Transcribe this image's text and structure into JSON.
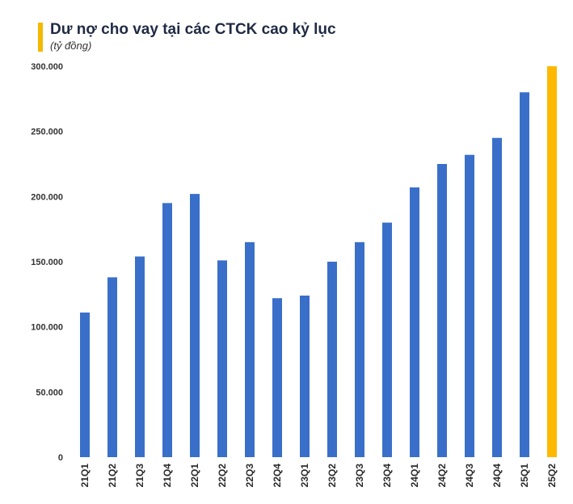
{
  "header": {
    "title": "Dư nợ cho vay tại các CTCK cao kỷ lục",
    "unit": "(tỷ đồng)"
  },
  "colors": {
    "accent": "#f5b800",
    "bar": "#3a6fc9",
    "highlight": "#ffb800",
    "title": "#1f2a44"
  },
  "chart_data": {
    "type": "bar",
    "title": "Dư nợ cho vay tại các CTCK cao kỷ lục",
    "subtitle": "(tỷ đồng)",
    "categories": [
      "21Q1",
      "21Q2",
      "21Q3",
      "21Q4",
      "22Q1",
      "22Q2",
      "22Q3",
      "22Q4",
      "23Q1",
      "23Q2",
      "23Q3",
      "23Q4",
      "24Q1",
      "24Q2",
      "24Q3",
      "24Q4",
      "25Q1",
      "25Q2"
    ],
    "values": [
      111000,
      138000,
      154000,
      195000,
      202000,
      151000,
      165000,
      122000,
      124000,
      150000,
      165000,
      180000,
      207000,
      225000,
      232000,
      245000,
      280000,
      300000
    ],
    "highlight_categories": [
      "25Q2"
    ],
    "ylim": [
      0,
      300000
    ],
    "yticks": [
      0,
      50000,
      100000,
      150000,
      200000,
      250000,
      300000
    ],
    "ytick_labels": [
      "0",
      "50.000",
      "100.000",
      "150.000",
      "200.000",
      "250.000",
      "300.000"
    ],
    "grid": false,
    "legend": "none"
  }
}
